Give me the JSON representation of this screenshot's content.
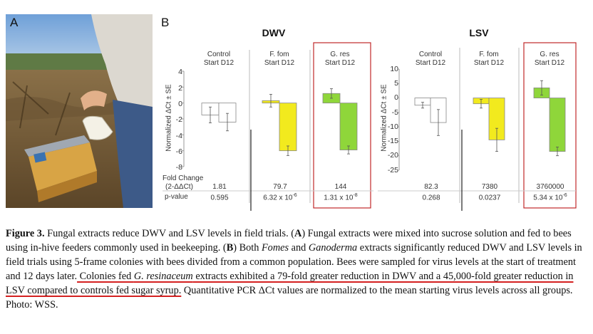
{
  "panel_a_label": "A",
  "panel_b_label": "B",
  "photo_description_icon": "beekeeper-photo",
  "colors": {
    "control": "#ffffff",
    "fomes": "#f2ea1e",
    "ganoderma": "#8fd63a",
    "highlight_box": "#c0282a",
    "underline": "#d42020"
  },
  "y_axis_label": "Normalized ΔCt ± SE",
  "fold_change_label": "Fold Change",
  "fold_change_formula": "(2-ΔΔCt)",
  "pvalue_label": "p-value",
  "chart_data": [
    {
      "type": "bar",
      "title": "DWV",
      "ylabel": "Normalized ΔCt ± SE",
      "ylim": [
        -8,
        4
      ],
      "yticks": [
        "4",
        "2",
        "0",
        "-2",
        "-4",
        "-6",
        "-8"
      ],
      "groups": [
        {
          "name": "Control",
          "sub": "Start  D12",
          "start": -1.5,
          "start_err": 1.0,
          "d12": -2.4,
          "d12_err": 1.1,
          "fold_change": "1.81",
          "p_value": "0.595",
          "p_exp": ""
        },
        {
          "name": "F. fom",
          "sub": "Start  D12",
          "start": 0.3,
          "start_err": 0.8,
          "d12": -6.0,
          "d12_err": 0.6,
          "fold_change": "79.7",
          "p_value": "6.32 x 10",
          "p_exp": "-6"
        },
        {
          "name": "G. res",
          "sub": "Start  D12",
          "start": 1.2,
          "start_err": 0.6,
          "d12": -5.9,
          "d12_err": 0.5,
          "fold_change": "144",
          "p_value": "1.31 x 10",
          "p_exp": "-8",
          "highlight": true
        }
      ]
    },
    {
      "type": "bar",
      "title": "LSV",
      "ylabel": "Normalized ΔCt ± SE",
      "ylim": [
        -25,
        10
      ],
      "yticks": [
        "10",
        "5",
        "0",
        "-5",
        "-10",
        "-15",
        "-20",
        "-25"
      ],
      "groups": [
        {
          "name": "Control",
          "sub": "Start  D12",
          "start": -2.5,
          "start_err": 1.0,
          "d12": -8.5,
          "d12_err": 4.5,
          "fold_change": "82.3",
          "p_value": "0.268",
          "p_exp": ""
        },
        {
          "name": "F. fom",
          "sub": "Start  D12",
          "start": -2.0,
          "start_err": 1.5,
          "d12": -14.5,
          "d12_err": 4.0,
          "fold_change": "7380",
          "p_value": "0.0237",
          "p_exp": ""
        },
        {
          "name": "G. res",
          "sub": "Start  D12",
          "start": 3.5,
          "start_err": 2.5,
          "d12": -18.5,
          "d12_err": 1.5,
          "fold_change": "3760000",
          "p_value": "5.34 x 10",
          "p_exp": "-6",
          "highlight": true
        }
      ]
    }
  ],
  "caption": {
    "fig_label": "Figure 3.",
    "s1": "  Fungal extracts reduce DWV and LSV levels in field trials. (",
    "a_bold": "A",
    "s2": ") Fungal extracts were mixed into sucrose solution and fed to bees using in-hive feeders commonly used in beekeeping. (",
    "b_bold": "B",
    "s3": ") Both ",
    "fomes_it": "Fomes",
    "s4": " and ",
    "gano_it": "Ganoderma",
    "s5": " extracts significantly reduced DWV and LSV levels in field trials using 5-frame colonies with bees divided from a common population. Bees were sampled for virus levels at the start of treatment and 12 days later.",
    "u1": " Colonies fed ",
    "gres_it": "G. resinaceum",
    "u2": " extracts exhibited a 79-fold greater reduction in DWV and a 45,000-fold greater reduction in LSV compared to controls fed sugar syrup.",
    "s6": " Quantitative PCR ",
    "delta": "Δ",
    "s7": "Ct values are normalized to the mean starting virus levels across all groups. Photo: WSS."
  }
}
